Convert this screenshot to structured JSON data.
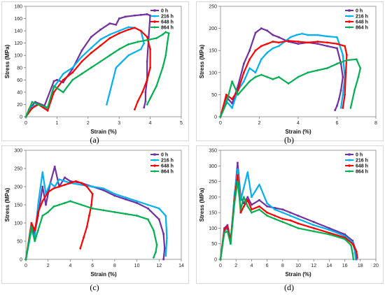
{
  "chart_data": [
    {
      "type": "line",
      "caption": "(a)",
      "xlabel": "Strain (%)",
      "ylabel": "Stress (MPa)",
      "xlim": [
        0,
        5
      ],
      "ylim": [
        0,
        180
      ],
      "xticks": [
        "0",
        "1",
        "2",
        "3",
        "4",
        "5"
      ],
      "yticks": [
        "0",
        "20",
        "40",
        "60",
        "80",
        "100",
        "120",
        "140",
        "160",
        "180"
      ],
      "xtick_values": [
        0,
        1,
        2,
        3,
        4,
        5
      ],
      "ytick_values": [
        0,
        20,
        40,
        60,
        80,
        100,
        120,
        140,
        160,
        180
      ],
      "legend_position": "top-right",
      "grid": false,
      "series": [
        {
          "name": "0 h",
          "color": "#7030a0",
          "x": [
            0,
            0.1,
            0.3,
            0.6,
            0.9,
            1.0,
            1.2,
            1.5,
            1.8,
            2.1,
            2.4,
            2.7,
            2.9,
            3.0,
            3.2,
            3.5,
            3.7,
            3.9,
            4.0,
            3.95,
            3.9,
            3.9,
            3.85,
            3.85,
            3.8
          ],
          "y": [
            0,
            12,
            24,
            18,
            58,
            60,
            56,
            78,
            108,
            130,
            142,
            152,
            150,
            160,
            163,
            165,
            166,
            167,
            165,
            130,
            90,
            60,
            40,
            25,
            15
          ]
        },
        {
          "name": "216 h",
          "color": "#00b0f0",
          "x": [
            0,
            0.15,
            0.4,
            0.7,
            0.9,
            1.2,
            1.5,
            1.8,
            2.1,
            2.4,
            2.7,
            3.0,
            3.3,
            3.5,
            3.7,
            3.8,
            3.7,
            3.3,
            2.9,
            2.7,
            2.6
          ],
          "y": [
            0,
            16,
            20,
            12,
            48,
            70,
            80,
            98,
            112,
            126,
            134,
            140,
            146,
            145,
            140,
            120,
            110,
            100,
            80,
            40,
            20
          ]
        },
        {
          "name": "648 h",
          "color": "#ff0000",
          "x": [
            0,
            0.2,
            0.4,
            0.7,
            0.9,
            1.2,
            1.5,
            1.8,
            2.1,
            2.4,
            2.7,
            3.0,
            3.3,
            3.5,
            3.7,
            3.9,
            4.0,
            4.0,
            3.9,
            3.75,
            3.6,
            3.5
          ],
          "y": [
            0,
            14,
            20,
            10,
            40,
            60,
            72,
            90,
            104,
            116,
            128,
            136,
            142,
            145,
            140,
            130,
            110,
            80,
            60,
            40,
            25,
            12
          ]
        },
        {
          "name": "864 h",
          "color": "#00b050",
          "x": [
            0,
            0.2,
            0.4,
            0.7,
            0.9,
            1.2,
            1.5,
            1.8,
            2.1,
            2.4,
            2.7,
            3.0,
            3.3,
            3.6,
            3.9,
            4.2,
            4.4,
            4.5,
            4.6,
            4.55,
            4.5,
            4.4,
            4.2,
            4.0,
            3.9
          ],
          "y": [
            0,
            24,
            20,
            15,
            50,
            40,
            60,
            70,
            80,
            90,
            100,
            110,
            118,
            122,
            125,
            128,
            134,
            138,
            136,
            120,
            100,
            80,
            50,
            30,
            20
          ]
        }
      ]
    },
    {
      "type": "line",
      "caption": "(b)",
      "xlabel": "Strain (%)",
      "ylabel": "Stress (MPa)",
      "xlim": [
        0,
        8
      ],
      "ylim": [
        0,
        250
      ],
      "xticks": [
        "0",
        "2",
        "4",
        "6",
        "8"
      ],
      "yticks": [
        "0",
        "50",
        "100",
        "150",
        "200",
        "250"
      ],
      "xtick_values": [
        0,
        2,
        4,
        6,
        8
      ],
      "ytick_values": [
        0,
        50,
        100,
        150,
        200,
        250
      ],
      "legend_position": "top-right",
      "grid": false,
      "series": [
        {
          "name": "0 h",
          "color": "#7030a0",
          "x": [
            0,
            0.3,
            0.6,
            0.9,
            1.2,
            1.5,
            1.8,
            2.1,
            2.4,
            2.7,
            3.0,
            3.5,
            4.0,
            4.5,
            5.0,
            5.5,
            6.0,
            6.2,
            6.3,
            6.2,
            6.1,
            6.0,
            5.9
          ],
          "y": [
            0,
            45,
            30,
            70,
            120,
            150,
            190,
            200,
            195,
            185,
            180,
            170,
            165,
            168,
            165,
            160,
            155,
            120,
            90,
            60,
            40,
            25,
            15
          ]
        },
        {
          "name": "216 h",
          "color": "#00b0f0",
          "x": [
            0,
            0.3,
            0.6,
            0.9,
            1.2,
            1.5,
            1.8,
            2.1,
            2.4,
            2.7,
            3.0,
            3.3,
            3.6,
            3.9,
            4.2,
            4.5,
            5.0,
            5.5,
            6.0,
            6.3,
            6.4,
            6.3,
            6.2
          ],
          "y": [
            0,
            35,
            20,
            60,
            80,
            110,
            100,
            130,
            145,
            155,
            160,
            170,
            180,
            185,
            188,
            185,
            185,
            182,
            180,
            140,
            90,
            50,
            20
          ]
        },
        {
          "name": "648 h",
          "color": "#ff0000",
          "x": [
            0,
            0.3,
            0.6,
            0.9,
            1.2,
            1.5,
            1.8,
            2.1,
            2.4,
            2.7,
            3.0,
            3.5,
            4.0,
            4.5,
            5.0,
            5.5,
            6.0,
            6.4,
            6.5,
            6.45,
            6.4,
            6.3
          ],
          "y": [
            0,
            50,
            40,
            60,
            100,
            130,
            150,
            160,
            165,
            170,
            168,
            172,
            170,
            168,
            170,
            168,
            165,
            160,
            140,
            100,
            50,
            20
          ]
        },
        {
          "name": "864 h",
          "color": "#00b050",
          "x": [
            0,
            0.3,
            0.6,
            0.9,
            1.2,
            1.5,
            1.8,
            2.1,
            2.4,
            2.7,
            3.0,
            3.5,
            4.0,
            4.5,
            5.0,
            5.5,
            6.0,
            6.5,
            7.0,
            7.2,
            7.1,
            6.9,
            6.7
          ],
          "y": [
            0,
            30,
            80,
            50,
            65,
            80,
            90,
            95,
            90,
            85,
            90,
            75,
            90,
            100,
            105,
            110,
            120,
            128,
            130,
            110,
            90,
            60,
            20
          ]
        }
      ]
    },
    {
      "type": "line",
      "caption": "(c)",
      "xlabel": "Strain (%)",
      "ylabel": "Stress (MPa)",
      "xlim": [
        0,
        14
      ],
      "ylim": [
        0,
        300
      ],
      "xticks": [
        "0",
        "2",
        "4",
        "6",
        "8",
        "10",
        "12",
        "14"
      ],
      "yticks": [
        "0",
        "50",
        "100",
        "150",
        "200",
        "250",
        "300"
      ],
      "xtick_values": [
        0,
        2,
        4,
        6,
        8,
        10,
        12,
        14
      ],
      "ytick_values": [
        0,
        50,
        100,
        150,
        200,
        250,
        300
      ],
      "legend_position": "top-right",
      "grid": false,
      "series": [
        {
          "name": "0 h",
          "color": "#7030a0",
          "x": [
            0,
            0.5,
            0.8,
            1.1,
            1.5,
            1.8,
            2.2,
            2.6,
            3.0,
            3.5,
            4.0,
            5.0,
            6.0,
            7.0,
            8.0,
            9.0,
            10.0,
            11.0,
            12.0,
            12.4,
            12.5,
            12.4
          ],
          "y": [
            0,
            90,
            70,
            120,
            200,
            150,
            210,
            255,
            200,
            225,
            215,
            210,
            200,
            190,
            175,
            165,
            155,
            140,
            110,
            70,
            30,
            0
          ]
        },
        {
          "name": "216 h",
          "color": "#00b0f0",
          "x": [
            0,
            0.5,
            0.8,
            1.1,
            1.5,
            1.8,
            2.2,
            2.6,
            3.0,
            3.5,
            4.0,
            5.0,
            6.0,
            7.0,
            8.0,
            9.0,
            10.0,
            11.0,
            12.0,
            12.6,
            12.7,
            12.6
          ],
          "y": [
            0,
            80,
            60,
            150,
            240,
            180,
            210,
            200,
            220,
            215,
            210,
            205,
            200,
            195,
            180,
            170,
            160,
            150,
            140,
            120,
            60,
            10
          ]
        },
        {
          "name": "648 h",
          "color": "#ff0000",
          "x": [
            0,
            0.5,
            0.8,
            1.1,
            1.5,
            2.0,
            2.5,
            3.0,
            3.5,
            4.0,
            4.5,
            5.0,
            5.5,
            6.0,
            5.9,
            5.7,
            5.5,
            5.2,
            4.9
          ],
          "y": [
            0,
            100,
            80,
            130,
            160,
            185,
            195,
            200,
            205,
            210,
            215,
            210,
            200,
            180,
            150,
            120,
            90,
            60,
            30
          ]
        },
        {
          "name": "864 h",
          "color": "#00b050",
          "x": [
            0,
            0.5,
            0.8,
            1.1,
            1.5,
            2.0,
            2.5,
            3.0,
            3.5,
            4.0,
            5.0,
            6.0,
            7.0,
            8.0,
            9.0,
            10.0,
            11.0,
            11.5,
            11.8,
            11.7,
            11.5
          ],
          "y": [
            0,
            90,
            50,
            80,
            120,
            130,
            145,
            150,
            155,
            160,
            150,
            140,
            135,
            130,
            125,
            120,
            110,
            80,
            40,
            20,
            5
          ]
        }
      ]
    },
    {
      "type": "line",
      "caption": "(d)",
      "xlabel": "Strain (%)",
      "ylabel": "Stress (MPa)",
      "xlim": [
        0,
        20
      ],
      "ylim": [
        0,
        350
      ],
      "xticks": [
        "0",
        "2",
        "4",
        "6",
        "8",
        "10",
        "12",
        "14",
        "16",
        "18",
        "20"
      ],
      "yticks": [
        "0",
        "50",
        "100",
        "150",
        "200",
        "250",
        "300",
        "350"
      ],
      "xtick_values": [
        0,
        2,
        4,
        6,
        8,
        10,
        12,
        14,
        16,
        18,
        20
      ],
      "ytick_values": [
        0,
        50,
        100,
        150,
        200,
        250,
        300,
        350
      ],
      "legend_position": "top-right",
      "grid": false,
      "series": [
        {
          "name": "0 h",
          "color": "#7030a0",
          "x": [
            0,
            0.5,
            0.9,
            1.3,
            1.8,
            2.2,
            2.6,
            3.0,
            3.5,
            4.0,
            5.0,
            6.0,
            7.0,
            8.0,
            9.0,
            10.0,
            12.0,
            14.0,
            16.0,
            17.0,
            17.4,
            17.5
          ],
          "y": [
            0,
            100,
            110,
            60,
            200,
            310,
            200,
            180,
            200,
            175,
            190,
            170,
            165,
            160,
            150,
            140,
            120,
            100,
            80,
            60,
            30,
            0
          ]
        },
        {
          "name": "216 h",
          "color": "#00b0f0",
          "x": [
            0,
            0.5,
            0.9,
            1.3,
            1.8,
            2.2,
            2.6,
            3.0,
            3.5,
            4.0,
            5.0,
            6.0,
            7.0,
            8.0,
            9.0,
            10.0,
            12.0,
            14.0,
            16.0,
            17.0,
            17.3,
            17.4
          ],
          "y": [
            0,
            90,
            100,
            50,
            210,
            290,
            190,
            230,
            280,
            200,
            240,
            180,
            160,
            150,
            140,
            130,
            110,
            95,
            75,
            55,
            25,
            0
          ]
        },
        {
          "name": "648 h",
          "color": "#ff0000",
          "x": [
            0,
            0.5,
            0.9,
            1.3,
            1.8,
            2.2,
            2.6,
            3.0,
            3.5,
            4.0,
            5.0,
            6.0,
            7.0,
            8.0,
            9.0,
            10.0,
            12.0,
            14.0,
            16.0,
            17.0,
            17.5,
            17.6
          ],
          "y": [
            0,
            95,
            105,
            55,
            190,
            270,
            150,
            170,
            190,
            160,
            170,
            150,
            140,
            130,
            125,
            115,
            100,
            85,
            70,
            50,
            25,
            5
          ]
        },
        {
          "name": "864 h",
          "color": "#00b050",
          "x": [
            0,
            0.5,
            0.9,
            1.3,
            1.8,
            2.2,
            2.6,
            3.0,
            3.5,
            4.0,
            5.0,
            6.0,
            7.0,
            8.0,
            9.0,
            10.0,
            12.0,
            14.0,
            16.0,
            16.8,
            17.0,
            17.1
          ],
          "y": [
            0,
            85,
            90,
            50,
            180,
            250,
            160,
            200,
            170,
            150,
            160,
            140,
            130,
            120,
            110,
            100,
            90,
            80,
            65,
            45,
            20,
            0
          ]
        }
      ]
    }
  ]
}
